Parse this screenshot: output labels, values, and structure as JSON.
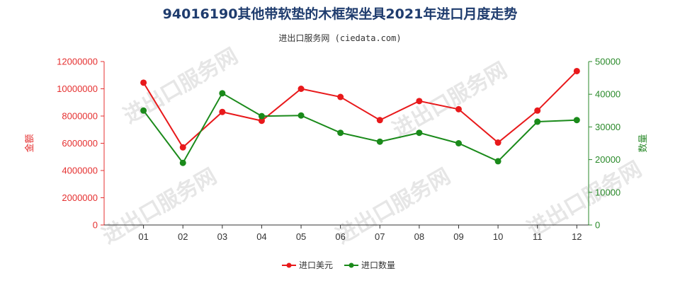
{
  "chart_data": {
    "type": "line",
    "title": "94016190其他带软垫的木框架坐具2021年进口月度走势",
    "subtitle": "进出口服务网 (ciedata.com)",
    "watermark": "进出口服务网",
    "categories": [
      "01",
      "02",
      "03",
      "04",
      "05",
      "06",
      "07",
      "08",
      "09",
      "10",
      "11",
      "12"
    ],
    "y_left": {
      "label": "金额",
      "ylim": [
        0,
        12000000
      ],
      "ticks": [
        "0",
        "2000000",
        "4000000",
        "6000000",
        "8000000",
        "10000000",
        "12000000"
      ],
      "color": "#e53030"
    },
    "y_right": {
      "label": "数量",
      "ylim": [
        0,
        50000
      ],
      "ticks": [
        "0",
        "10000",
        "20000",
        "30000",
        "40000",
        "50000"
      ],
      "color": "#2a8a2a"
    },
    "series": [
      {
        "name": "进口美元",
        "axis": "left",
        "color": "#e8191b",
        "values": [
          10450000,
          5700000,
          8300000,
          7650000,
          10000000,
          9400000,
          7700000,
          9100000,
          8500000,
          6050000,
          8400000,
          11300000
        ]
      },
      {
        "name": "进口数量",
        "axis": "right",
        "color": "#1a8a1a",
        "values": [
          35000,
          19000,
          40300,
          33300,
          33500,
          28200,
          25500,
          28200,
          25000,
          19500,
          31600,
          32100
        ]
      }
    ],
    "legend": "bottom-center",
    "grid": false
  }
}
